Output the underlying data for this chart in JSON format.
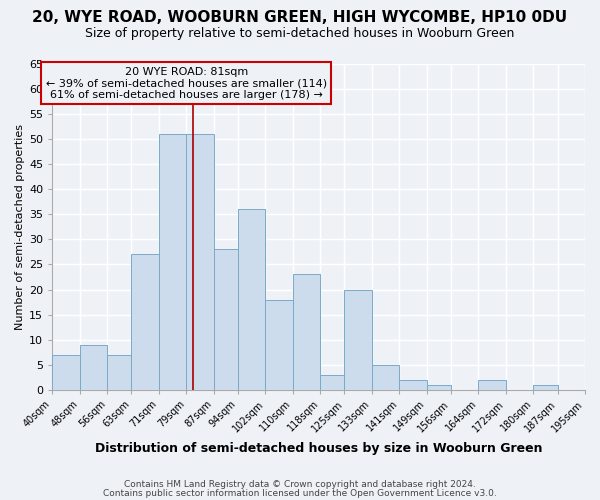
{
  "title": "20, WYE ROAD, WOOBURN GREEN, HIGH WYCOMBE, HP10 0DU",
  "subtitle": "Size of property relative to semi-detached houses in Wooburn Green",
  "xlabel": "Distribution of semi-detached houses by size in Wooburn Green",
  "ylabel": "Number of semi-detached properties",
  "footer_lines": [
    "Contains HM Land Registry data © Crown copyright and database right 2024.",
    "Contains public sector information licensed under the Open Government Licence v3.0."
  ],
  "bins": [
    40,
    48,
    56,
    63,
    71,
    79,
    87,
    94,
    102,
    110,
    118,
    125,
    133,
    141,
    149,
    156,
    164,
    172,
    180,
    187,
    195
  ],
  "bin_labels": [
    "40sqm",
    "48sqm",
    "56sqm",
    "63sqm",
    "71sqm",
    "79sqm",
    "87sqm",
    "94sqm",
    "102sqm",
    "110sqm",
    "118sqm",
    "125sqm",
    "133sqm",
    "141sqm",
    "149sqm",
    "156sqm",
    "164sqm",
    "172sqm",
    "180sqm",
    "187sqm",
    "195sqm"
  ],
  "counts": [
    7,
    9,
    7,
    27,
    51,
    51,
    28,
    36,
    18,
    23,
    3,
    20,
    5,
    2,
    1,
    0,
    2,
    0,
    1,
    0
  ],
  "bar_color": "#ccdcec",
  "bar_edge_color": "#7aaac8",
  "property_size": 81,
  "property_line_color": "#aa0000",
  "annotation_text_line1": "20 WYE ROAD: 81sqm",
  "annotation_line2": "← 39% of semi-detached houses are smaller (114)",
  "annotation_line3": "61% of semi-detached houses are larger (178) →",
  "annotation_box_edge_color": "#cc0000",
  "ylim": [
    0,
    65
  ],
  "yticks": [
    0,
    5,
    10,
    15,
    20,
    25,
    30,
    35,
    40,
    45,
    50,
    55,
    60,
    65
  ],
  "bg_color": "#eef2f7",
  "grid_color": "#ffffff",
  "title_fontsize": 11,
  "subtitle_fontsize": 9
}
